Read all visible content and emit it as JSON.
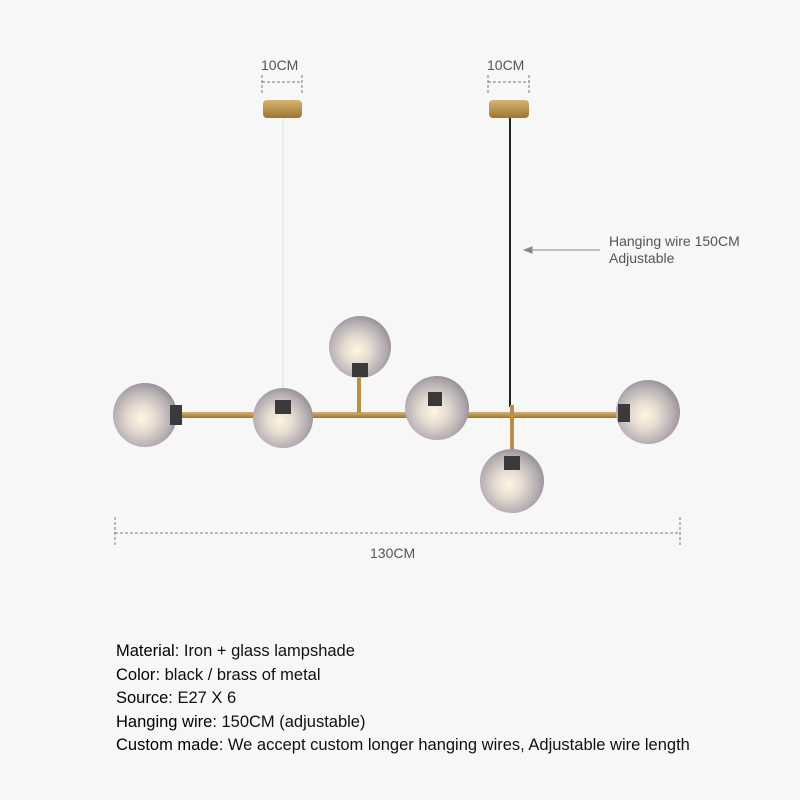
{
  "dimensions": {
    "canopy_left": "10CM",
    "canopy_right": "10CM",
    "wire_note_line1": "Hanging wire 150CM",
    "wire_note_line2": "Adjustable",
    "total_width": "130CM"
  },
  "colors": {
    "brass": "#b98f48",
    "glass": "#a9a3a6",
    "background": "#f7f7f7"
  },
  "specs": [
    {
      "label": "Material",
      "value": ": Iron + glass lampshade"
    },
    {
      "label": "Color",
      "value": ": black / brass of metal"
    },
    {
      "label": "Source",
      "value": ": E27 X 6"
    },
    {
      "label": "Hanging wire",
      "value": ": 150CM (adjustable)"
    },
    {
      "label": "Custom made",
      "value": ": We accept custom longer hanging wires, Adjustable wire length"
    }
  ]
}
